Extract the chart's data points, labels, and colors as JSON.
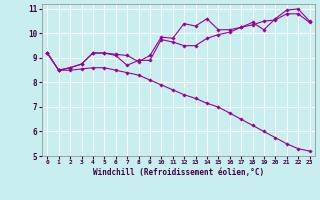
{
  "xlabel": "Windchill (Refroidissement éolien,°C)",
  "bg_color": "#c8eef0",
  "line_color": "#990099",
  "grid_color": "#ffffff",
  "xlim": [
    -0.5,
    23.5
  ],
  "ylim": [
    5,
    11.2
  ],
  "yticks": [
    5,
    6,
    7,
    8,
    9,
    10,
    11
  ],
  "xticks": [
    0,
    1,
    2,
    3,
    4,
    5,
    6,
    7,
    8,
    9,
    10,
    11,
    12,
    13,
    14,
    15,
    16,
    17,
    18,
    19,
    20,
    21,
    22,
    23
  ],
  "line1_x": [
    0,
    1,
    2,
    3,
    4,
    5,
    6,
    7,
    8,
    9,
    10,
    11,
    12,
    13,
    14,
    15,
    16,
    17,
    18,
    19,
    20,
    21,
    22,
    23
  ],
  "line1_y": [
    9.2,
    8.5,
    8.6,
    8.75,
    9.2,
    9.2,
    9.15,
    9.1,
    8.85,
    9.1,
    9.85,
    9.8,
    10.4,
    10.3,
    10.6,
    10.15,
    10.15,
    10.25,
    10.45,
    10.15,
    10.6,
    10.95,
    11.0,
    10.5
  ],
  "line2_x": [
    0,
    1,
    2,
    3,
    4,
    5,
    6,
    7,
    8,
    9,
    10,
    11,
    12,
    13,
    14,
    15,
    16,
    17,
    18,
    19,
    20,
    21,
    22,
    23
  ],
  "line2_y": [
    9.2,
    8.5,
    8.6,
    8.75,
    9.2,
    9.2,
    9.1,
    8.7,
    8.9,
    8.9,
    9.75,
    9.65,
    9.5,
    9.5,
    9.8,
    9.95,
    10.05,
    10.25,
    10.35,
    10.5,
    10.55,
    10.8,
    10.8,
    10.45
  ],
  "line3_x": [
    0,
    1,
    2,
    3,
    4,
    5,
    6,
    7,
    8,
    9,
    10,
    11,
    12,
    13,
    14,
    15,
    16,
    17,
    18,
    19,
    20,
    21,
    22,
    23
  ],
  "line3_y": [
    9.2,
    8.5,
    8.5,
    8.55,
    8.6,
    8.6,
    8.5,
    8.4,
    8.3,
    8.1,
    7.9,
    7.7,
    7.5,
    7.35,
    7.15,
    7.0,
    6.75,
    6.5,
    6.25,
    6.0,
    5.75,
    5.5,
    5.3,
    5.2
  ]
}
